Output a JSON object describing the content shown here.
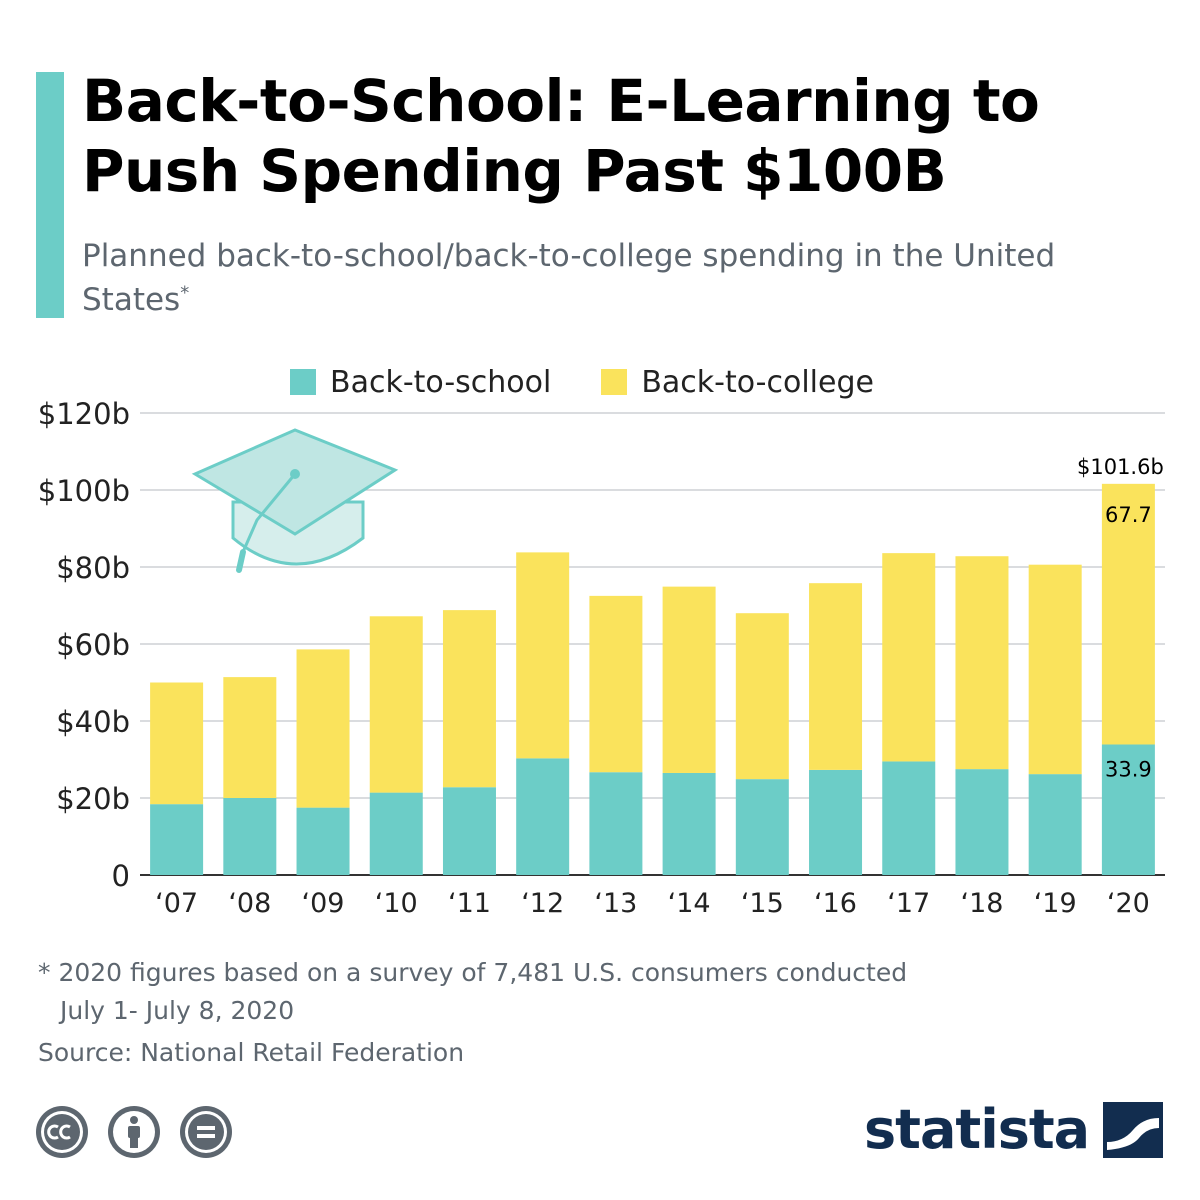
{
  "header": {
    "title": "Back-to-School: E-Learning to Push Spending Past $100B",
    "subtitle": "Planned back-to-school/back-to-college spending in the United States",
    "subtitle_marker": "*"
  },
  "legend": {
    "school_label": "Back-to-school",
    "college_label": "Back-to-college"
  },
  "colors": {
    "accent": "#6ccdc7",
    "school": "#6ccdc7",
    "college": "#fae35c",
    "brand": "#122d4f",
    "muted": "#5d666f"
  },
  "chart_data": {
    "type": "bar",
    "stacked": true,
    "categories": [
      "‘07",
      "‘08",
      "‘09",
      "‘10",
      "‘11",
      "‘12",
      "‘13",
      "‘14",
      "‘15",
      "‘16",
      "‘17",
      "‘18",
      "‘19",
      "‘20"
    ],
    "series": [
      {
        "name": "Back-to-school",
        "values": [
          18.4,
          20.0,
          17.5,
          21.4,
          22.8,
          30.3,
          26.7,
          26.5,
          24.9,
          27.3,
          29.5,
          27.5,
          26.2,
          33.9
        ]
      },
      {
        "name": "Back-to-college",
        "values": [
          31.6,
          31.4,
          41.1,
          45.8,
          46.0,
          53.5,
          45.8,
          48.4,
          43.1,
          48.5,
          54.1,
          55.3,
          54.4,
          67.7
        ]
      }
    ],
    "ylim": [
      0,
      120
    ],
    "yticks": [
      0,
      20,
      40,
      60,
      80,
      100,
      120
    ],
    "ytick_labels": [
      "0",
      "$20b",
      "$40b",
      "$60b",
      "$80b",
      "$100b",
      "$120b"
    ],
    "annotations": {
      "total_2020": "$101.6b",
      "college_2020": "67.7",
      "school_2020": "33.9"
    },
    "grid": true,
    "legend_position": "top"
  },
  "footer": {
    "footnote_line1": "* 2020 figures based on a survey of 7,481 U.S. consumers conducted",
    "footnote_line2": "July 1- July 8, 2020",
    "source": "Source: National Retail Federation",
    "logo": "statista",
    "license_icons": [
      "creative-commons-icon",
      "attribution-icon",
      "no-derivatives-icon"
    ]
  }
}
